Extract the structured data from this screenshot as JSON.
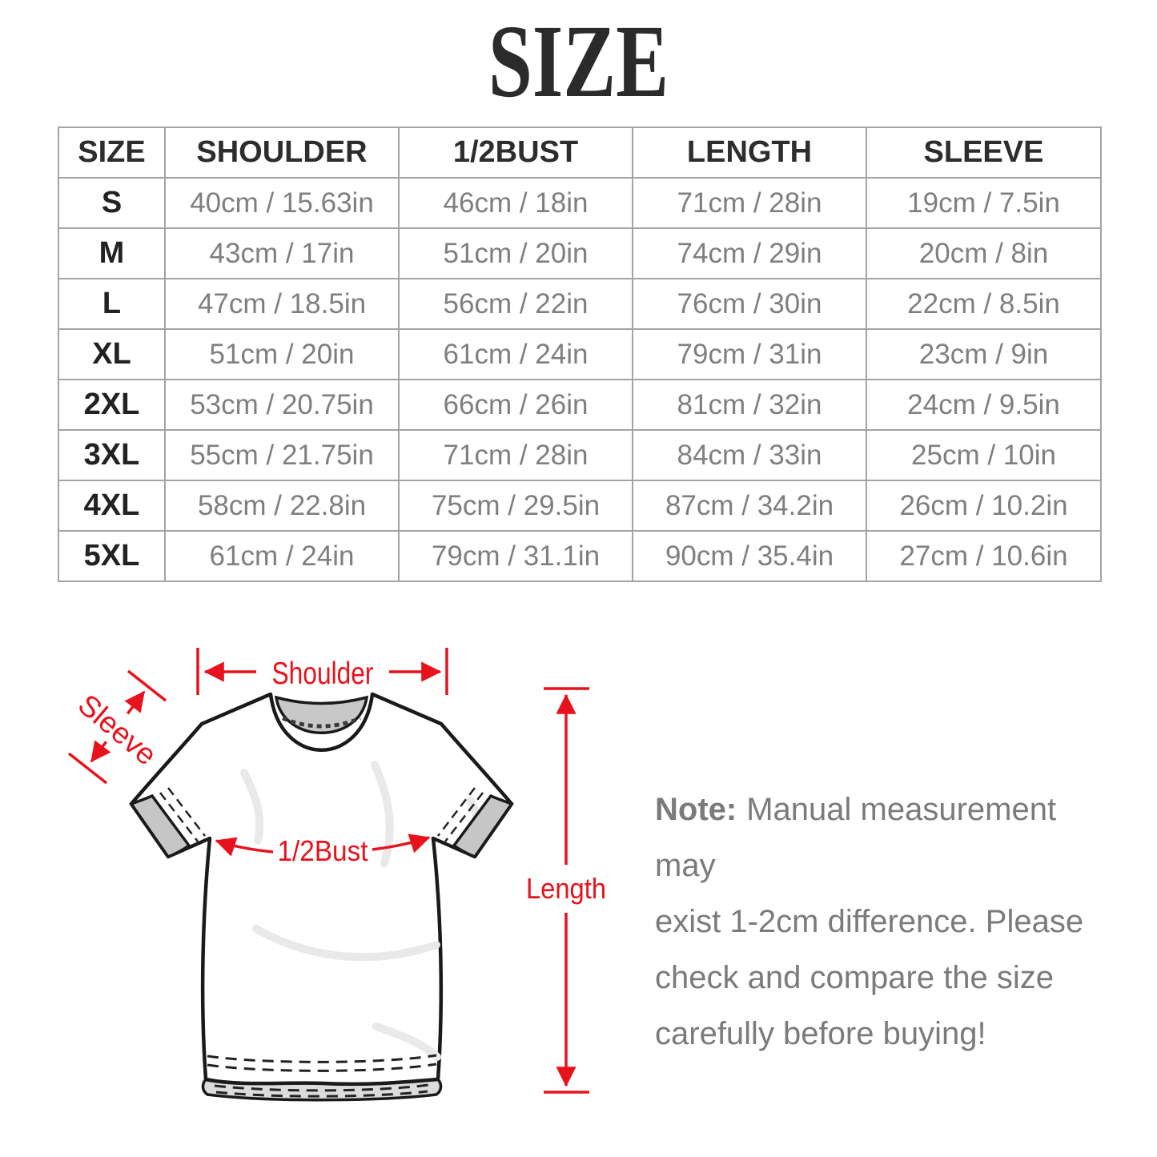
{
  "title": "SIZE",
  "table": {
    "headers": [
      "SIZE",
      "SHOULDER",
      "1/2BUST",
      "LENGTH",
      "SLEEVE"
    ],
    "rows": [
      [
        "S",
        "40cm / 15.63in",
        "46cm / 18in",
        "71cm / 28in",
        "19cm / 7.5in"
      ],
      [
        "M",
        "43cm / 17in",
        "51cm / 20in",
        "74cm / 29in",
        "20cm / 8in"
      ],
      [
        "L",
        "47cm / 18.5in",
        "56cm / 22in",
        "76cm / 30in",
        "22cm / 8.5in"
      ],
      [
        "XL",
        "51cm / 20in",
        "61cm / 24in",
        "79cm / 31in",
        "23cm / 9in"
      ],
      [
        "2XL",
        "53cm / 20.75in",
        "66cm / 26in",
        "81cm / 32in",
        "24cm / 9.5in"
      ],
      [
        "3XL",
        "55cm / 21.75in",
        "71cm / 28in",
        "84cm / 33in",
        "25cm / 10in"
      ],
      [
        "4XL",
        "58cm / 22.8in",
        "75cm / 29.5in",
        "87cm / 34.2in",
        "26cm / 10.2in"
      ],
      [
        "5XL",
        "61cm / 24in",
        "79cm / 31.1in",
        "90cm / 35.4in",
        "27cm / 10.6in"
      ]
    ]
  },
  "diagram": {
    "labels": {
      "shoulder": "Shoulder",
      "sleeve": "Sleeve",
      "half_bust": "1/2Bust",
      "length": "Length"
    }
  },
  "note": {
    "label": "Note:",
    "lines": [
      "Manual measurement may",
      "exist 1-2cm difference. Please",
      "check and compare the size",
      "carefully before buying!"
    ]
  },
  "colors": {
    "accent_red": "#e8121d",
    "table_border": "#a3a3a3",
    "table_text": "#7f7f7f",
    "heading_text": "#2d2d2d",
    "note_text": "#7b7b7b",
    "title_text": "#2b2b2b"
  }
}
